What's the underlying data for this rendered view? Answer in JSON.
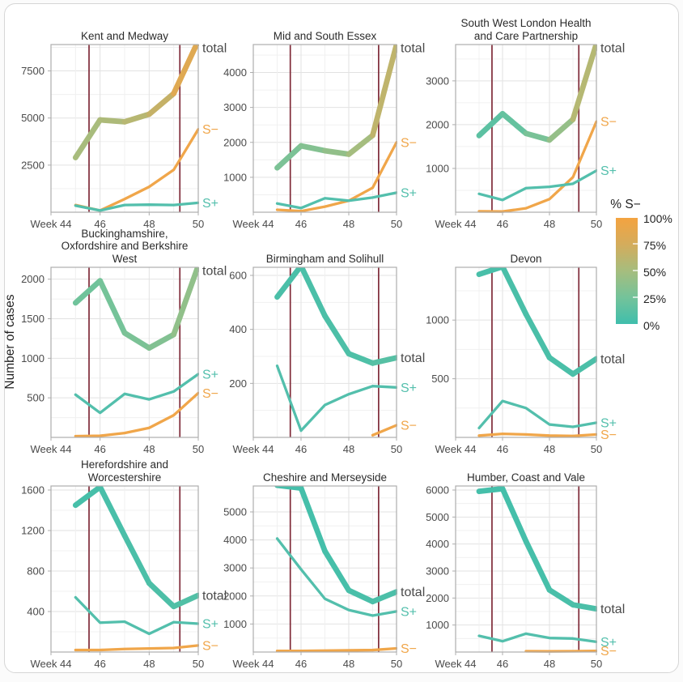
{
  "figure": {
    "y_axis_label": "Number of cases",
    "x_tick_labels": [
      "Week 44",
      "46",
      "48",
      "50"
    ],
    "x_tick_weeks": [
      44,
      46,
      48,
      50
    ],
    "x_range": [
      44,
      50
    ],
    "weeks": [
      45,
      46,
      47,
      48,
      49,
      50
    ],
    "red_vlines_weeks": [
      45.55,
      49.25
    ],
    "series_labels": {
      "total": "total",
      "s_minus": "S−",
      "s_plus": "S+"
    },
    "colors": {
      "s_plus_line": "#53BFAC",
      "s_minus_line": "#F0A64A",
      "red_vline": "#7F2B39",
      "total_label": "#4a4a4a",
      "grid_major": "#E2E2E2",
      "grid_minor": "#F0F0F0",
      "plot_border": "#ADADAD",
      "colormap_stops": [
        "#3FBEAC",
        "#74C39A",
        "#A6BD7E",
        "#D4AC5C",
        "#F4A340"
      ]
    },
    "legend": {
      "title": "% S−",
      "labels": [
        "100%",
        "75%",
        "50%",
        "25%",
        "0%"
      ],
      "gradient_top": "#F4A340",
      "gradient_bottom": "#3FBEAC"
    }
  },
  "chart_data": [
    {
      "type": "line",
      "title": "Kent and Medway",
      "yticks": [
        2500,
        5000,
        7500
      ],
      "ymax": 8900,
      "total": [
        2900,
        4900,
        4800,
        5200,
        6300,
        9100
      ],
      "total_pct": [
        0.5,
        0.52,
        0.56,
        0.62,
        0.72,
        0.95
      ],
      "s_minus": [
        380,
        90,
        700,
        1350,
        2250,
        4400
      ],
      "s_plus": [
        350,
        90,
        380,
        400,
        380,
        500
      ]
    },
    {
      "type": "line",
      "title": "Mid and South Essex",
      "yticks": [
        1000,
        2000,
        3000,
        4000
      ],
      "ymax": 4800,
      "total": [
        1270,
        1900,
        1760,
        1660,
        2200,
        4800
      ],
      "total_pct": [
        0.28,
        0.3,
        0.36,
        0.44,
        0.55,
        0.72
      ],
      "s_minus": [
        70,
        30,
        160,
        330,
        700,
        2000
      ],
      "s_plus": [
        250,
        120,
        400,
        330,
        420,
        560
      ]
    },
    {
      "type": "line",
      "title": "South West London Health and Care Partnership",
      "yticks": [
        1000,
        2000,
        3000
      ],
      "ymax": 3830,
      "total": [
        1750,
        2250,
        1800,
        1650,
        2120,
        3850
      ],
      "total_pct": [
        0.13,
        0.14,
        0.22,
        0.33,
        0.5,
        0.66
      ],
      "s_minus": [
        20,
        15,
        90,
        300,
        800,
        2070
      ],
      "s_plus": [
        420,
        280,
        550,
        580,
        650,
        950
      ]
    },
    {
      "type": "line",
      "title": "Buckinghamshire, Oxfordshire and Berkshire West",
      "yticks": [
        500,
        1000,
        1500,
        2000
      ],
      "ymax": 2150,
      "total": [
        1700,
        1980,
        1320,
        1130,
        1300,
        2170
      ],
      "total_pct": [
        0.22,
        0.24,
        0.27,
        0.3,
        0.34,
        0.45
      ],
      "s_minus": [
        15,
        20,
        55,
        120,
        280,
        560
      ],
      "s_plus": [
        540,
        310,
        550,
        480,
        580,
        800
      ]
    },
    {
      "type": "line",
      "title": "Birmingham and Solihull",
      "yticks": [
        200,
        400,
        600
      ],
      "ymax": 630,
      "total": [
        520,
        635,
        450,
        310,
        275,
        295
      ],
      "total_pct": [
        0.06,
        0.05,
        0.06,
        0.07,
        0.08,
        0.14
      ],
      "s_minus": [
        null,
        null,
        null,
        null,
        8,
        45
      ],
      "s_plus": [
        265,
        25,
        120,
        160,
        190,
        185
      ]
    },
    {
      "type": "line",
      "title": "Devon",
      "yticks": [
        500,
        1000
      ],
      "ymax": 1450,
      "total": [
        1390,
        1455,
        1050,
        680,
        540,
        670
      ],
      "total_pct": [
        0.04,
        0.05,
        0.05,
        0.05,
        0.05,
        0.07
      ],
      "s_minus": [
        15,
        30,
        25,
        15,
        12,
        25
      ],
      "s_plus": [
        80,
        310,
        250,
        110,
        90,
        125
      ]
    },
    {
      "type": "line",
      "title": "Herefordshire and Worcestershire",
      "yticks": [
        400,
        800,
        1200,
        1600
      ],
      "ymax": 1640,
      "total": [
        1450,
        1630,
        1150,
        680,
        450,
        560
      ],
      "total_pct": [
        0.04,
        0.04,
        0.05,
        0.06,
        0.07,
        0.1
      ],
      "s_minus": [
        20,
        20,
        30,
        35,
        40,
        65
      ],
      "s_plus": [
        540,
        290,
        300,
        180,
        295,
        280
      ]
    },
    {
      "type": "line",
      "title": "Cheshire and Merseyside",
      "yticks": [
        1000,
        2000,
        3000,
        4000,
        5000
      ],
      "ymax": 5925,
      "total": [
        5950,
        5850,
        3600,
        2200,
        1800,
        2150
      ],
      "total_pct": [
        0.03,
        0.03,
        0.03,
        0.04,
        0.05,
        0.07
      ],
      "s_minus": [
        40,
        40,
        50,
        60,
        70,
        130
      ],
      "s_plus": [
        4050,
        2950,
        1900,
        1500,
        1300,
        1450
      ]
    },
    {
      "type": "line",
      "title": "Humber, Coast and Vale",
      "yticks": [
        1000,
        2000,
        3000,
        4000,
        5000,
        6000
      ],
      "ymax": 6150,
      "total": [
        5950,
        6050,
        4100,
        2300,
        1750,
        1600
      ],
      "total_pct": [
        0.03,
        0.03,
        0.03,
        0.04,
        0.05,
        0.06
      ],
      "s_minus": [
        null,
        null,
        30,
        25,
        30,
        40
      ],
      "s_plus": [
        600,
        400,
        680,
        520,
        500,
        380
      ]
    }
  ]
}
